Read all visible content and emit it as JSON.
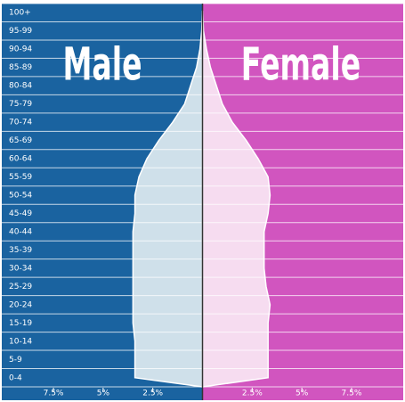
{
  "chart_data": {
    "type": "pyramid",
    "categories": [
      "0-4",
      "5-9",
      "10-14",
      "15-19",
      "20-24",
      "25-29",
      "30-34",
      "35-39",
      "40-44",
      "45-49",
      "50-54",
      "55-59",
      "60-64",
      "65-69",
      "70-74",
      "75-79",
      "80-84",
      "85-89",
      "90-94",
      "95-99",
      "100+"
    ],
    "series": [
      {
        "name": "Male",
        "side": "left",
        "color": "#cfe0ea",
        "panel_color": "#1a63a0",
        "values": [
          3.4,
          3.4,
          3.4,
          3.5,
          3.5,
          3.5,
          3.5,
          3.5,
          3.5,
          3.4,
          3.4,
          3.2,
          2.8,
          2.2,
          1.5,
          0.9,
          0.6,
          0.3,
          0.13,
          0.04,
          0.01
        ]
      },
      {
        "name": "Female",
        "side": "right",
        "color": "#f6dcf0",
        "panel_color": "#d155bf",
        "values": [
          3.3,
          3.3,
          3.3,
          3.3,
          3.4,
          3.2,
          3.1,
          3.1,
          3.1,
          3.3,
          3.4,
          3.3,
          2.8,
          2.2,
          1.5,
          1.0,
          0.7,
          0.4,
          0.2,
          0.05,
          0.01
        ]
      }
    ],
    "xlim": [
      -10.1,
      10.1
    ],
    "xticks": [
      {
        "value": -7.5,
        "label": "7.5%"
      },
      {
        "value": -5,
        "label": "5%"
      },
      {
        "value": -2.5,
        "label": "2.5%"
      },
      {
        "value": 2.5,
        "label": "2.5%"
      },
      {
        "value": 5,
        "label": "5%"
      },
      {
        "value": 7.5,
        "label": "7.5%"
      }
    ],
    "grid": true
  }
}
